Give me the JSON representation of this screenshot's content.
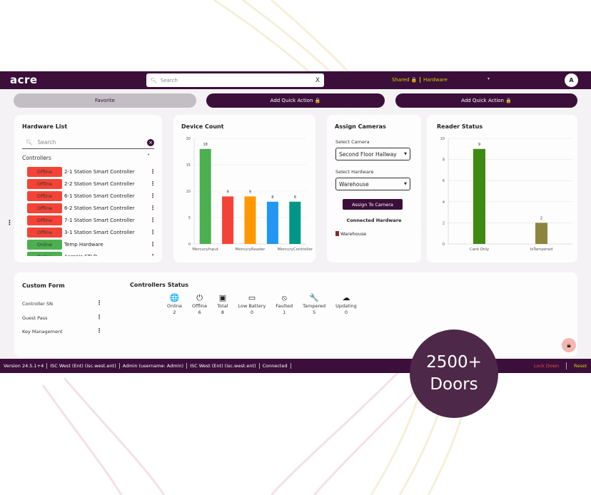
{
  "header": {
    "logo": "acre",
    "search_placeholder": "Search",
    "clear": "X",
    "shared": "Shared 🔒",
    "hardware": "Hardware",
    "dropdown": "▾",
    "avatar": "A"
  },
  "quick_actions": [
    {
      "label": "Favorite"
    },
    {
      "label": "Add Quick Action 🔒"
    },
    {
      "label": "Add Quick Action 🔒"
    }
  ],
  "hardware_list": {
    "title": "Hardware List",
    "search_placeholder": "Search",
    "group": "Controllers",
    "items": [
      {
        "status": "Offline",
        "name": "2-1 Station Smart Controller"
      },
      {
        "status": "Offline",
        "name": "2-2 Station Smart Controller"
      },
      {
        "status": "Offline",
        "name": "6-1 Station Smart Controller"
      },
      {
        "status": "Offline",
        "name": "6-2 Station Smart Controller"
      },
      {
        "status": "Offline",
        "name": "7-1 Station Smart Controller"
      },
      {
        "status": "Offline",
        "name": "3-1 Station Smart Controller"
      },
      {
        "status": "Online",
        "name": "Temp Hardware"
      },
      {
        "status": "Online",
        "name": "Aaron's STLD"
      }
    ]
  },
  "assign_cameras": {
    "title": "Assign Cameras",
    "camera_label": "Select Camera",
    "camera_value": "Second Floor Hallway",
    "hardware_label": "Select Hardware",
    "hardware_value": "Warehouse",
    "button": "Assign To Camera",
    "connected_title": "Connected Hardware",
    "connected_item": "Warehouse"
  },
  "custom_form": {
    "title": "Custom Form",
    "items": [
      "Controller SN",
      "Guest Pass",
      "Key Management"
    ]
  },
  "controllers_status": {
    "title": "Controllers Status",
    "items": [
      {
        "icon": "globe-icon",
        "glyph": "🌐",
        "label": "Online",
        "value": "2"
      },
      {
        "icon": "power-icon",
        "glyph": "⏻",
        "label": "Offline",
        "value": "6"
      },
      {
        "icon": "chip-icon",
        "glyph": "▣",
        "label": "Total",
        "value": "8"
      },
      {
        "icon": "battery-icon",
        "glyph": "▭",
        "label": "Low Battery",
        "value": "0"
      },
      {
        "icon": "blocked-icon",
        "glyph": "⦸",
        "label": "Faulted",
        "value": "1"
      },
      {
        "icon": "wrench-icon",
        "glyph": "🔧",
        "label": "Tampered",
        "value": "5"
      },
      {
        "icon": "cloud-upload-icon",
        "glyph": "☁",
        "label": "Updating",
        "value": "0"
      }
    ]
  },
  "footer": {
    "items": [
      "Version 24.5.1+4",
      "ISC West (Ent) (isc.west.ent)",
      "Admin (username: Admin)",
      "ISC West (Ent) (isc.west.ent)",
      "Connected"
    ],
    "lockdown": "Lock Down",
    "reset": "Reset"
  },
  "promo": {
    "line1": "2500+",
    "line2": "Doors"
  },
  "colors": {
    "brand": "#3b0f3a",
    "offline": "#f44336",
    "online": "#4caf50",
    "accent": "#c8d400"
  },
  "chart_data": [
    {
      "type": "bar",
      "title": "Device Count",
      "categories": [
        "MercuryInput",
        "",
        "MercuryReader",
        "",
        "MercuryController"
      ],
      "values": [
        18,
        9,
        9,
        8,
        8
      ],
      "colors": [
        "#4caf50",
        "#f44336",
        "#ff9800",
        "#2196f3",
        "#009688"
      ],
      "ylim": [
        0,
        20
      ],
      "yticks": [
        0,
        5,
        10,
        15,
        20
      ],
      "grid": true
    },
    {
      "type": "bar",
      "title": "Reader Status",
      "categories": [
        "Card Only",
        "IsTampered"
      ],
      "values": [
        9,
        2
      ],
      "colors": [
        "#3f8a12",
        "#8b8540"
      ],
      "ylim": [
        0,
        10
      ],
      "yticks": [
        0,
        2,
        4,
        6,
        8,
        10
      ],
      "grid": true
    }
  ]
}
